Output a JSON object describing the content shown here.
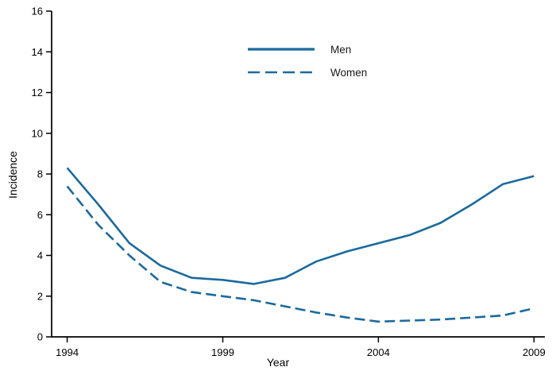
{
  "chart_data": {
    "type": "line",
    "title": "",
    "xlabel": "Year",
    "ylabel": "Incidence",
    "x": [
      1994,
      1995,
      1996,
      1997,
      1998,
      1999,
      2000,
      2001,
      2002,
      2003,
      2004,
      2005,
      2006,
      2007,
      2008,
      2009
    ],
    "series": [
      {
        "name": "Men",
        "style": "solid",
        "values": [
          8.3,
          6.5,
          4.6,
          3.5,
          2.9,
          2.8,
          2.6,
          2.9,
          3.7,
          4.2,
          4.6,
          5.0,
          5.6,
          6.5,
          7.5,
          7.9
        ]
      },
      {
        "name": "Women",
        "style": "dashed",
        "values": [
          7.4,
          5.5,
          4.0,
          2.7,
          2.2,
          2.0,
          1.8,
          1.5,
          1.2,
          0.95,
          0.75,
          0.8,
          0.85,
          0.95,
          1.05,
          1.4
        ]
      }
    ],
    "xlim": [
      1993.5,
      2009.35
    ],
    "ylim": [
      0,
      16
    ],
    "yticks": [
      0,
      2,
      4,
      6,
      8,
      10,
      12,
      14,
      16
    ],
    "xticks": [
      1994,
      1999,
      2004,
      2009
    ],
    "line_color": "#1b6a9e",
    "axis_color": "#000000",
    "grid": false,
    "legend_position": "inside-top-center"
  }
}
